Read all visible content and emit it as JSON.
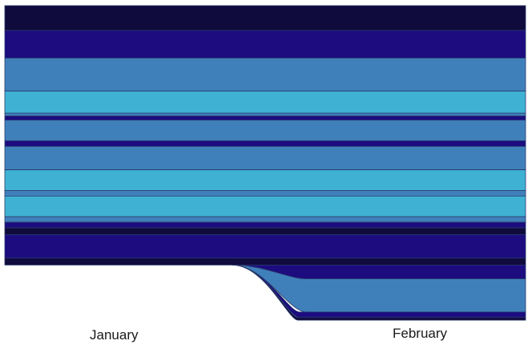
{
  "chart_data": {
    "type": "area",
    "categories": [
      "January",
      "February"
    ],
    "colors": {
      "darkest": "#100b3d",
      "navy": "#1c0c80",
      "steel": "#3f80bb",
      "cyan": "#3fb2d4",
      "stroke": "#2a3a6b"
    },
    "layers": [
      {
        "color": "darkest",
        "values": [
          0.9,
          0.9
        ]
      },
      {
        "color": "navy",
        "values": [
          1.0,
          1.0
        ]
      },
      {
        "color": "steel",
        "values": [
          1.2,
          1.2
        ]
      },
      {
        "color": "cyan",
        "values": [
          0.8,
          0.8
        ]
      },
      {
        "color": "steel",
        "values": [
          0.1,
          0.1
        ]
      },
      {
        "color": "navy",
        "values": [
          0.15,
          0.15
        ]
      },
      {
        "color": "steel",
        "values": [
          0.75,
          0.75
        ]
      },
      {
        "color": "navy",
        "values": [
          0.2,
          0.2
        ]
      },
      {
        "color": "steel",
        "values": [
          0.85,
          0.85
        ]
      },
      {
        "color": "cyan",
        "values": [
          0.75,
          0.75
        ]
      },
      {
        "color": "steel",
        "values": [
          0.2,
          0.2
        ]
      },
      {
        "color": "cyan",
        "values": [
          0.75,
          0.75
        ]
      },
      {
        "color": "steel",
        "values": [
          0.2,
          0.2
        ]
      },
      {
        "color": "navy",
        "values": [
          0.2,
          0.2
        ]
      },
      {
        "color": "darkest",
        "values": [
          0.25,
          0.25
        ]
      },
      {
        "color": "navy",
        "values": [
          0.85,
          0.85
        ]
      },
      {
        "color": "darkest",
        "values": [
          0.25,
          0.25
        ]
      },
      {
        "color": "navy",
        "values": [
          0.0,
          0.5
        ]
      },
      {
        "color": "steel",
        "values": [
          0.0,
          1.2
        ]
      },
      {
        "color": "navy",
        "values": [
          0.0,
          0.2
        ]
      },
      {
        "color": "darkest",
        "values": [
          0.0,
          0.1
        ]
      }
    ]
  }
}
